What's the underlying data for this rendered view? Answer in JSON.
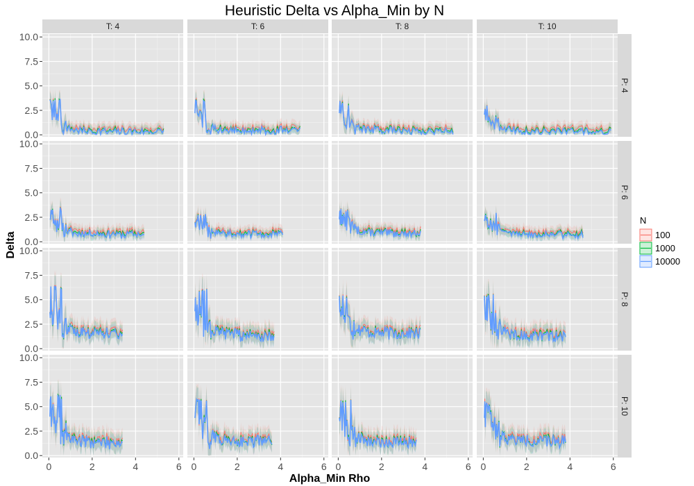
{
  "chart_data": {
    "type": "line",
    "title": "Heuristic Delta vs Alpha_Min by N",
    "xlabel": "Alpha_Min Rho",
    "ylabel": "Delta",
    "xlim": [
      -0.3,
      6.2
    ],
    "ylim": [
      -0.2,
      10.3
    ],
    "x_ticks": [
      "0",
      "2",
      "4",
      "6"
    ],
    "x_tick_values": [
      0,
      2,
      4,
      6
    ],
    "y_ticks": [
      "0.0",
      "2.5",
      "5.0",
      "7.5",
      "10.0"
    ],
    "y_tick_values": [
      0,
      2.5,
      5,
      7.5,
      10
    ],
    "grid": true,
    "legend_position": "right",
    "legend_title": "N",
    "col_labels": [
      "T: 4",
      "T: 6",
      "T: 8",
      "T: 10"
    ],
    "row_labels": [
      "P: 4",
      "P: 6",
      "P: 8",
      "P: 10"
    ],
    "series": [
      {
        "name": "100",
        "color": "#F8766D"
      },
      {
        "name": "1000",
        "color": "#00BA38"
      },
      {
        "name": "10000",
        "color": "#619CFF"
      }
    ],
    "panels": [
      [
        {
          "xmax": 5.3,
          "start": 3.0,
          "peak": 3.6,
          "end": 0.35
        },
        {
          "xmax": 4.9,
          "start": 3.0,
          "peak": 3.4,
          "end": 0.45
        },
        {
          "xmax": 5.3,
          "start": 3.0,
          "peak": 3.2,
          "end": 0.45
        },
        {
          "xmax": 5.9,
          "start": 2.8,
          "peak": 3.0,
          "end": 0.4
        }
      ],
      [
        {
          "xmax": 4.4,
          "start": 3.0,
          "peak": 3.3,
          "end": 0.8
        },
        {
          "xmax": 4.1,
          "start": 2.6,
          "peak": 2.8,
          "end": 0.8
        },
        {
          "xmax": 3.8,
          "start": 3.0,
          "peak": 3.2,
          "end": 0.9
        },
        {
          "xmax": 4.6,
          "start": 2.8,
          "peak": 2.9,
          "end": 0.8
        }
      ],
      [
        {
          "xmax": 3.4,
          "start": 4.8,
          "peak": 6.2,
          "end": 1.6
        },
        {
          "xmax": 3.7,
          "start": 5.0,
          "peak": 6.0,
          "end": 1.4
        },
        {
          "xmax": 3.8,
          "start": 5.0,
          "peak": 5.4,
          "end": 1.6
        },
        {
          "xmax": 3.8,
          "start": 5.0,
          "peak": 5.5,
          "end": 1.3
        }
      ],
      [
        {
          "xmax": 3.4,
          "start": 5.2,
          "peak": 6.0,
          "end": 1.4
        },
        {
          "xmax": 3.6,
          "start": 5.0,
          "peak": 5.6,
          "end": 1.5
        },
        {
          "xmax": 3.6,
          "start": 5.0,
          "peak": 5.6,
          "end": 1.4
        },
        {
          "xmax": 3.8,
          "start": 5.0,
          "peak": 5.2,
          "end": 1.5
        }
      ]
    ]
  }
}
